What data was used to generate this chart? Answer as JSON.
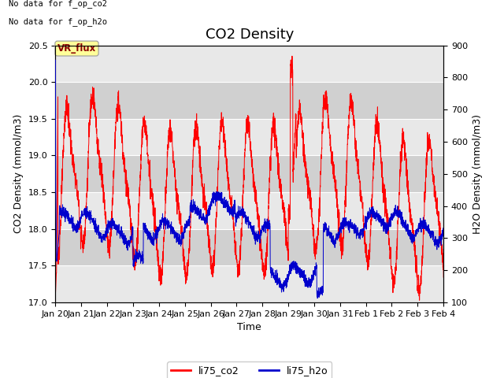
{
  "title": "CO2 Density",
  "xlabel": "Time",
  "ylabel_left": "CO2 Density (mmol/m3)",
  "ylabel_right": "H2O Density (mmol/m3)",
  "ylim_left": [
    17.0,
    20.5
  ],
  "ylim_right": [
    100,
    900
  ],
  "yticks_left": [
    17.0,
    17.5,
    18.0,
    18.5,
    19.0,
    19.5,
    20.0,
    20.5
  ],
  "yticks_right": [
    100,
    200,
    300,
    400,
    500,
    600,
    700,
    800,
    900
  ],
  "text_no_data": [
    "No data for f_op_co2",
    "No data for f_op_h2o"
  ],
  "vr_flux_label": "VR_flux",
  "legend_labels": [
    "li75_co2",
    "li75_h2o"
  ],
  "line_color_co2": "#ff0000",
  "line_color_h2o": "#0000cc",
  "background_color": "#ffffff",
  "plot_bg_color": "#d8d8d8",
  "band_color_light": "#e8e8e8",
  "band_color_dark": "#d0d0d0",
  "grid_color": "#ffffff",
  "title_fontsize": 13,
  "axis_label_fontsize": 9,
  "tick_label_fontsize": 8,
  "vr_flux_box_color": "#ffff99",
  "vr_flux_text_color": "#8b0000",
  "n_points": 3000,
  "xtick_labels": [
    "Jan 20",
    "Jan 21",
    "Jan 22",
    "Jan 23",
    "Jan 24",
    "Jan 25",
    "Jan 26",
    "Jan 27",
    "Jan 28",
    "Jan 29",
    "Jan 30",
    "Jan 31",
    "Feb 1",
    "Feb 2",
    "Feb 3",
    "Feb 4"
  ],
  "xtick_positions": [
    0,
    1,
    2,
    3,
    4,
    5,
    6,
    7,
    8,
    9,
    10,
    11,
    12,
    13,
    14,
    15
  ]
}
